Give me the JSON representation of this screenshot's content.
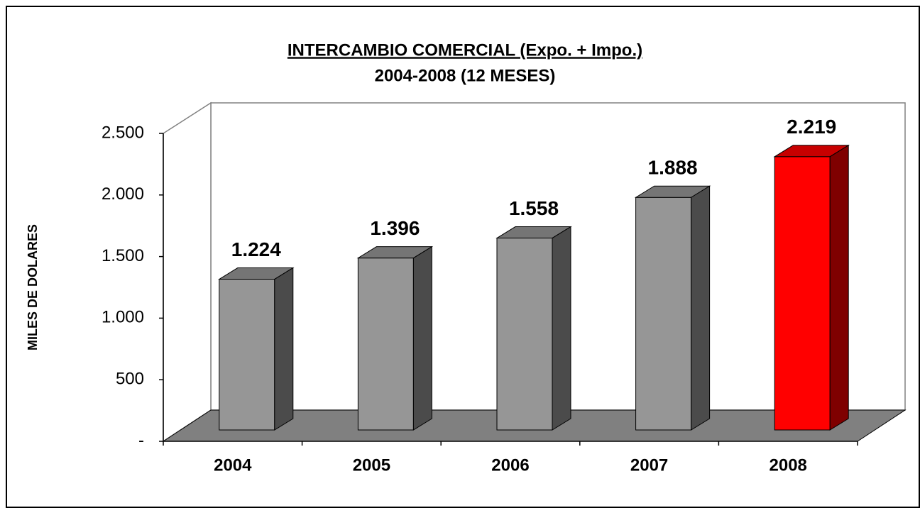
{
  "chart_data": {
    "type": "bar3d",
    "title": "INTERCAMBIO COMERCIAL (Expo. + Impo.)",
    "subtitle": "2004-2008 (12 MESES)",
    "y_label": "MILES DE DOLARES",
    "categories": [
      "2004",
      "2005",
      "2006",
      "2007",
      "2008"
    ],
    "values": [
      1224,
      1396,
      1558,
      1888,
      2219
    ],
    "value_labels": [
      "1.224",
      "1.396",
      "1.558",
      "1.888",
      "2.219"
    ],
    "colors": [
      "#969696",
      "#969696",
      "#969696",
      "#969696",
      "#ff0000"
    ],
    "ylim": [
      0,
      2500
    ],
    "yticks": [
      {
        "value": 0,
        "label": "-"
      },
      500,
      {
        "value": 1000,
        "label": "1.000"
      },
      {
        "value": 1500,
        "label": "1.500"
      },
      {
        "value": 2000,
        "label": "2.000"
      },
      {
        "value": 2500,
        "label": "2.500"
      }
    ]
  }
}
